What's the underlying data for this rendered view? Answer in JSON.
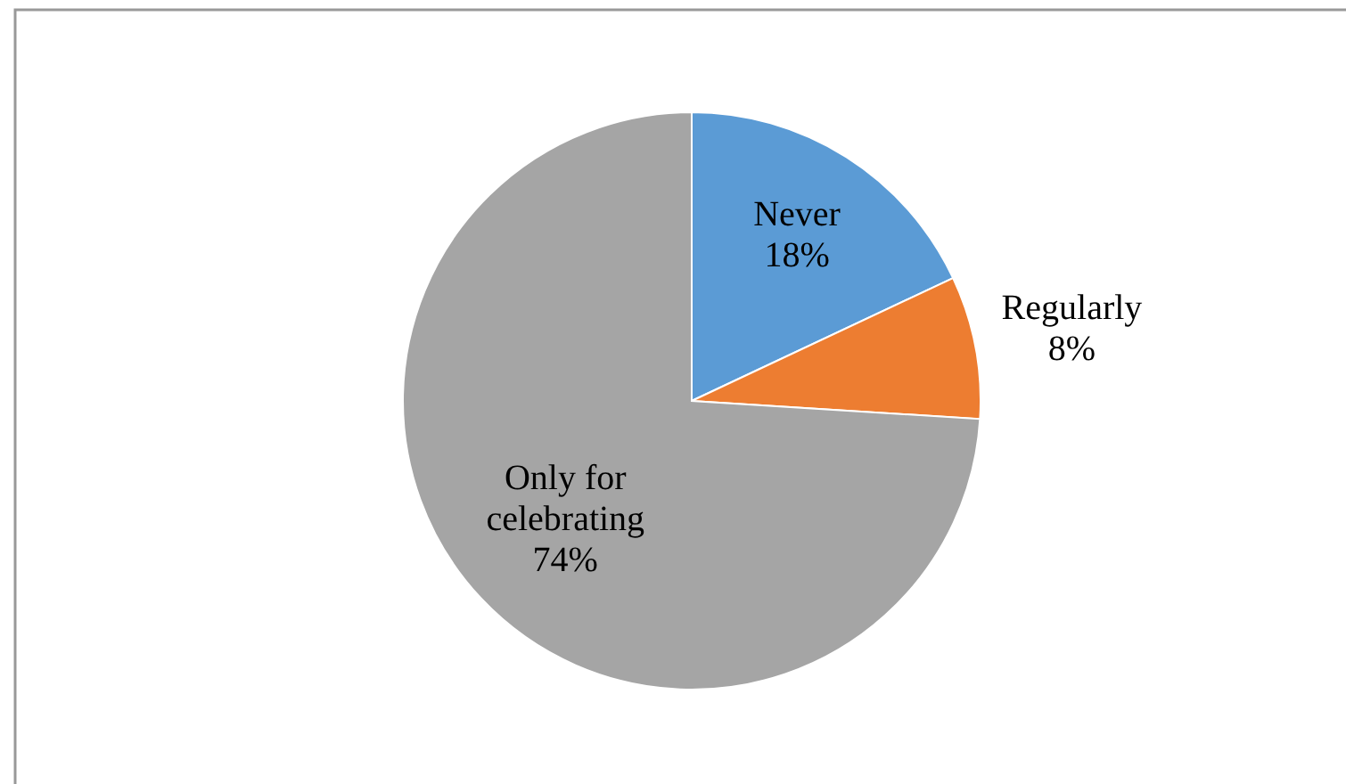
{
  "chart_data": {
    "type": "pie",
    "categories": [
      "Never",
      "Regularly",
      "Only for celebrating"
    ],
    "values": [
      18,
      8,
      74
    ],
    "colors": [
      "#5b9bd5",
      "#ed7d31",
      "#a5a5a5"
    ],
    "value_labels": [
      "18%",
      "8%",
      "74%"
    ],
    "legend": false
  }
}
